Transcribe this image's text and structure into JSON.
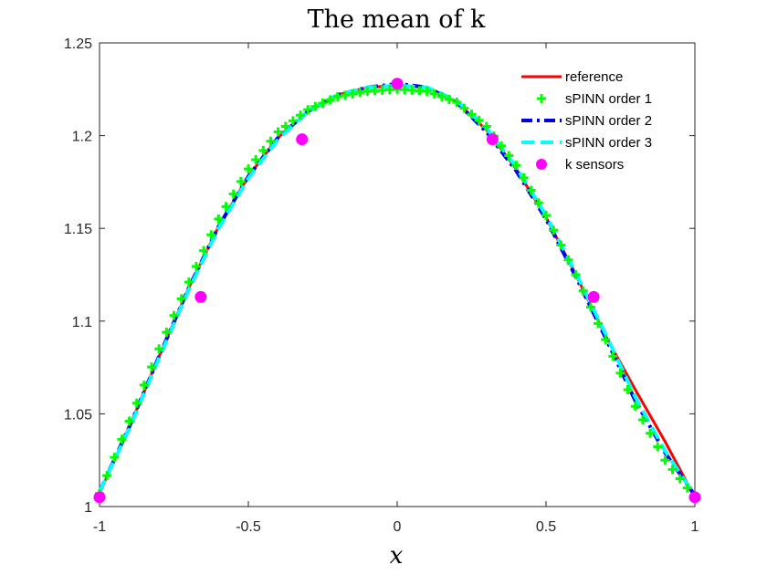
{
  "chart_data": {
    "type": "line",
    "title": "The mean of k",
    "xlabel": "x",
    "ylabel": "",
    "xlim": [
      -1,
      1
    ],
    "ylim": [
      1,
      1.25
    ],
    "xticks": [
      -1,
      -0.5,
      0,
      0.5,
      1
    ],
    "xtick_labels": [
      "-1",
      "-0.5",
      "0",
      "0.5",
      "1"
    ],
    "yticks": [
      1,
      1.05,
      1.1,
      1.15,
      1.2,
      1.25
    ],
    "ytick_labels": [
      "1",
      "1.05",
      "1.1",
      "1.15",
      "1.2",
      "1.25"
    ],
    "grid": false,
    "legend_position": "top-right",
    "x": [
      -1.0,
      -0.9,
      -0.8,
      -0.7,
      -0.6,
      -0.5,
      -0.4,
      -0.3,
      -0.2,
      -0.1,
      0.0,
      0.1,
      0.2,
      0.3,
      0.4,
      0.5,
      0.6,
      0.7,
      0.8,
      0.9,
      1.0
    ],
    "series": [
      {
        "name": "reference",
        "color": "#ff0000",
        "style": "solid",
        "values": [
          1.007,
          1.043,
          1.081,
          1.118,
          1.151,
          1.178,
          1.199,
          1.213,
          1.222,
          1.226,
          1.227,
          1.226,
          1.218,
          1.203,
          1.182,
          1.156,
          1.125,
          1.092,
          1.063,
          1.035,
          1.005
        ]
      },
      {
        "name": "sPINN order 1",
        "color": "#00ff00",
        "style": "plus-markers",
        "values": [
          1.007,
          1.046,
          1.085,
          1.121,
          1.155,
          1.182,
          1.202,
          1.214,
          1.221,
          1.224,
          1.225,
          1.224,
          1.218,
          1.205,
          1.184,
          1.157,
          1.125,
          1.09,
          1.054,
          1.025,
          1.005
        ]
      },
      {
        "name": "sPINN order 2",
        "color": "#0000e6",
        "style": "dash-dot",
        "values": [
          1.008,
          1.043,
          1.081,
          1.118,
          1.151,
          1.178,
          1.199,
          1.213,
          1.222,
          1.226,
          1.228,
          1.226,
          1.218,
          1.202,
          1.181,
          1.155,
          1.124,
          1.091,
          1.057,
          1.029,
          1.006
        ]
      },
      {
        "name": "sPINN order 3",
        "color": "#00ffff",
        "style": "dashed",
        "values": [
          1.008,
          1.042,
          1.08,
          1.117,
          1.15,
          1.177,
          1.198,
          1.213,
          1.222,
          1.226,
          1.227,
          1.226,
          1.219,
          1.204,
          1.183,
          1.157,
          1.126,
          1.093,
          1.059,
          1.03,
          1.006
        ]
      }
    ],
    "sensors": {
      "name": "k sensors",
      "color": "#ff00ff",
      "x": [
        -1.0,
        -0.66,
        -0.32,
        0.0,
        0.32,
        0.66,
        1.0
      ],
      "y": [
        1.005,
        1.113,
        1.198,
        1.228,
        1.198,
        1.113,
        1.005
      ]
    }
  }
}
